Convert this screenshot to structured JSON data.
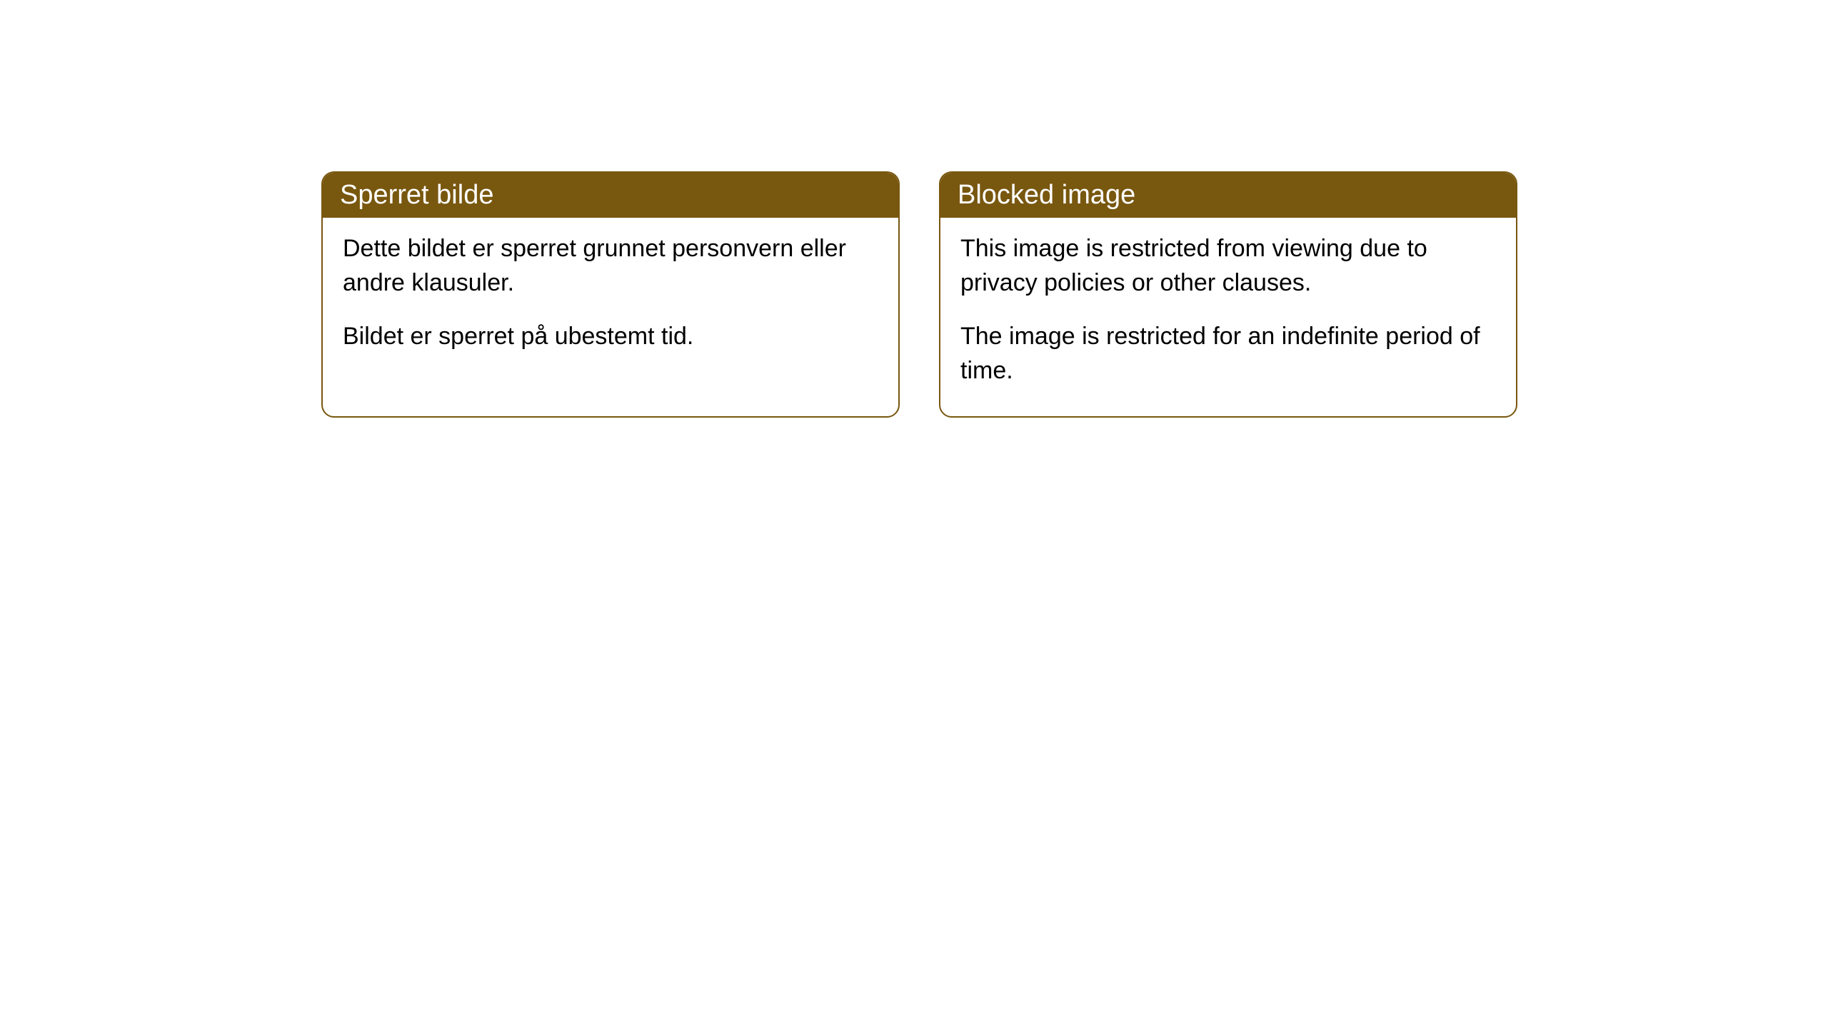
{
  "cards": [
    {
      "title": "Sperret bilde",
      "paragraph1": "Dette bildet er sperret grunnet personvern eller andre klausuler.",
      "paragraph2": "Bildet er sperret på ubestemt tid."
    },
    {
      "title": "Blocked image",
      "paragraph1": "This image is restricted from viewing due to privacy policies or other clauses.",
      "paragraph2": "The image is restricted for an indefinite period of time."
    }
  ],
  "styling": {
    "header_background": "#78570f",
    "header_text_color": "#ffffff",
    "border_color": "#78570f",
    "body_background": "#ffffff",
    "body_text_color": "#000000",
    "border_radius": 18,
    "title_fontsize": 38,
    "body_fontsize": 34
  }
}
